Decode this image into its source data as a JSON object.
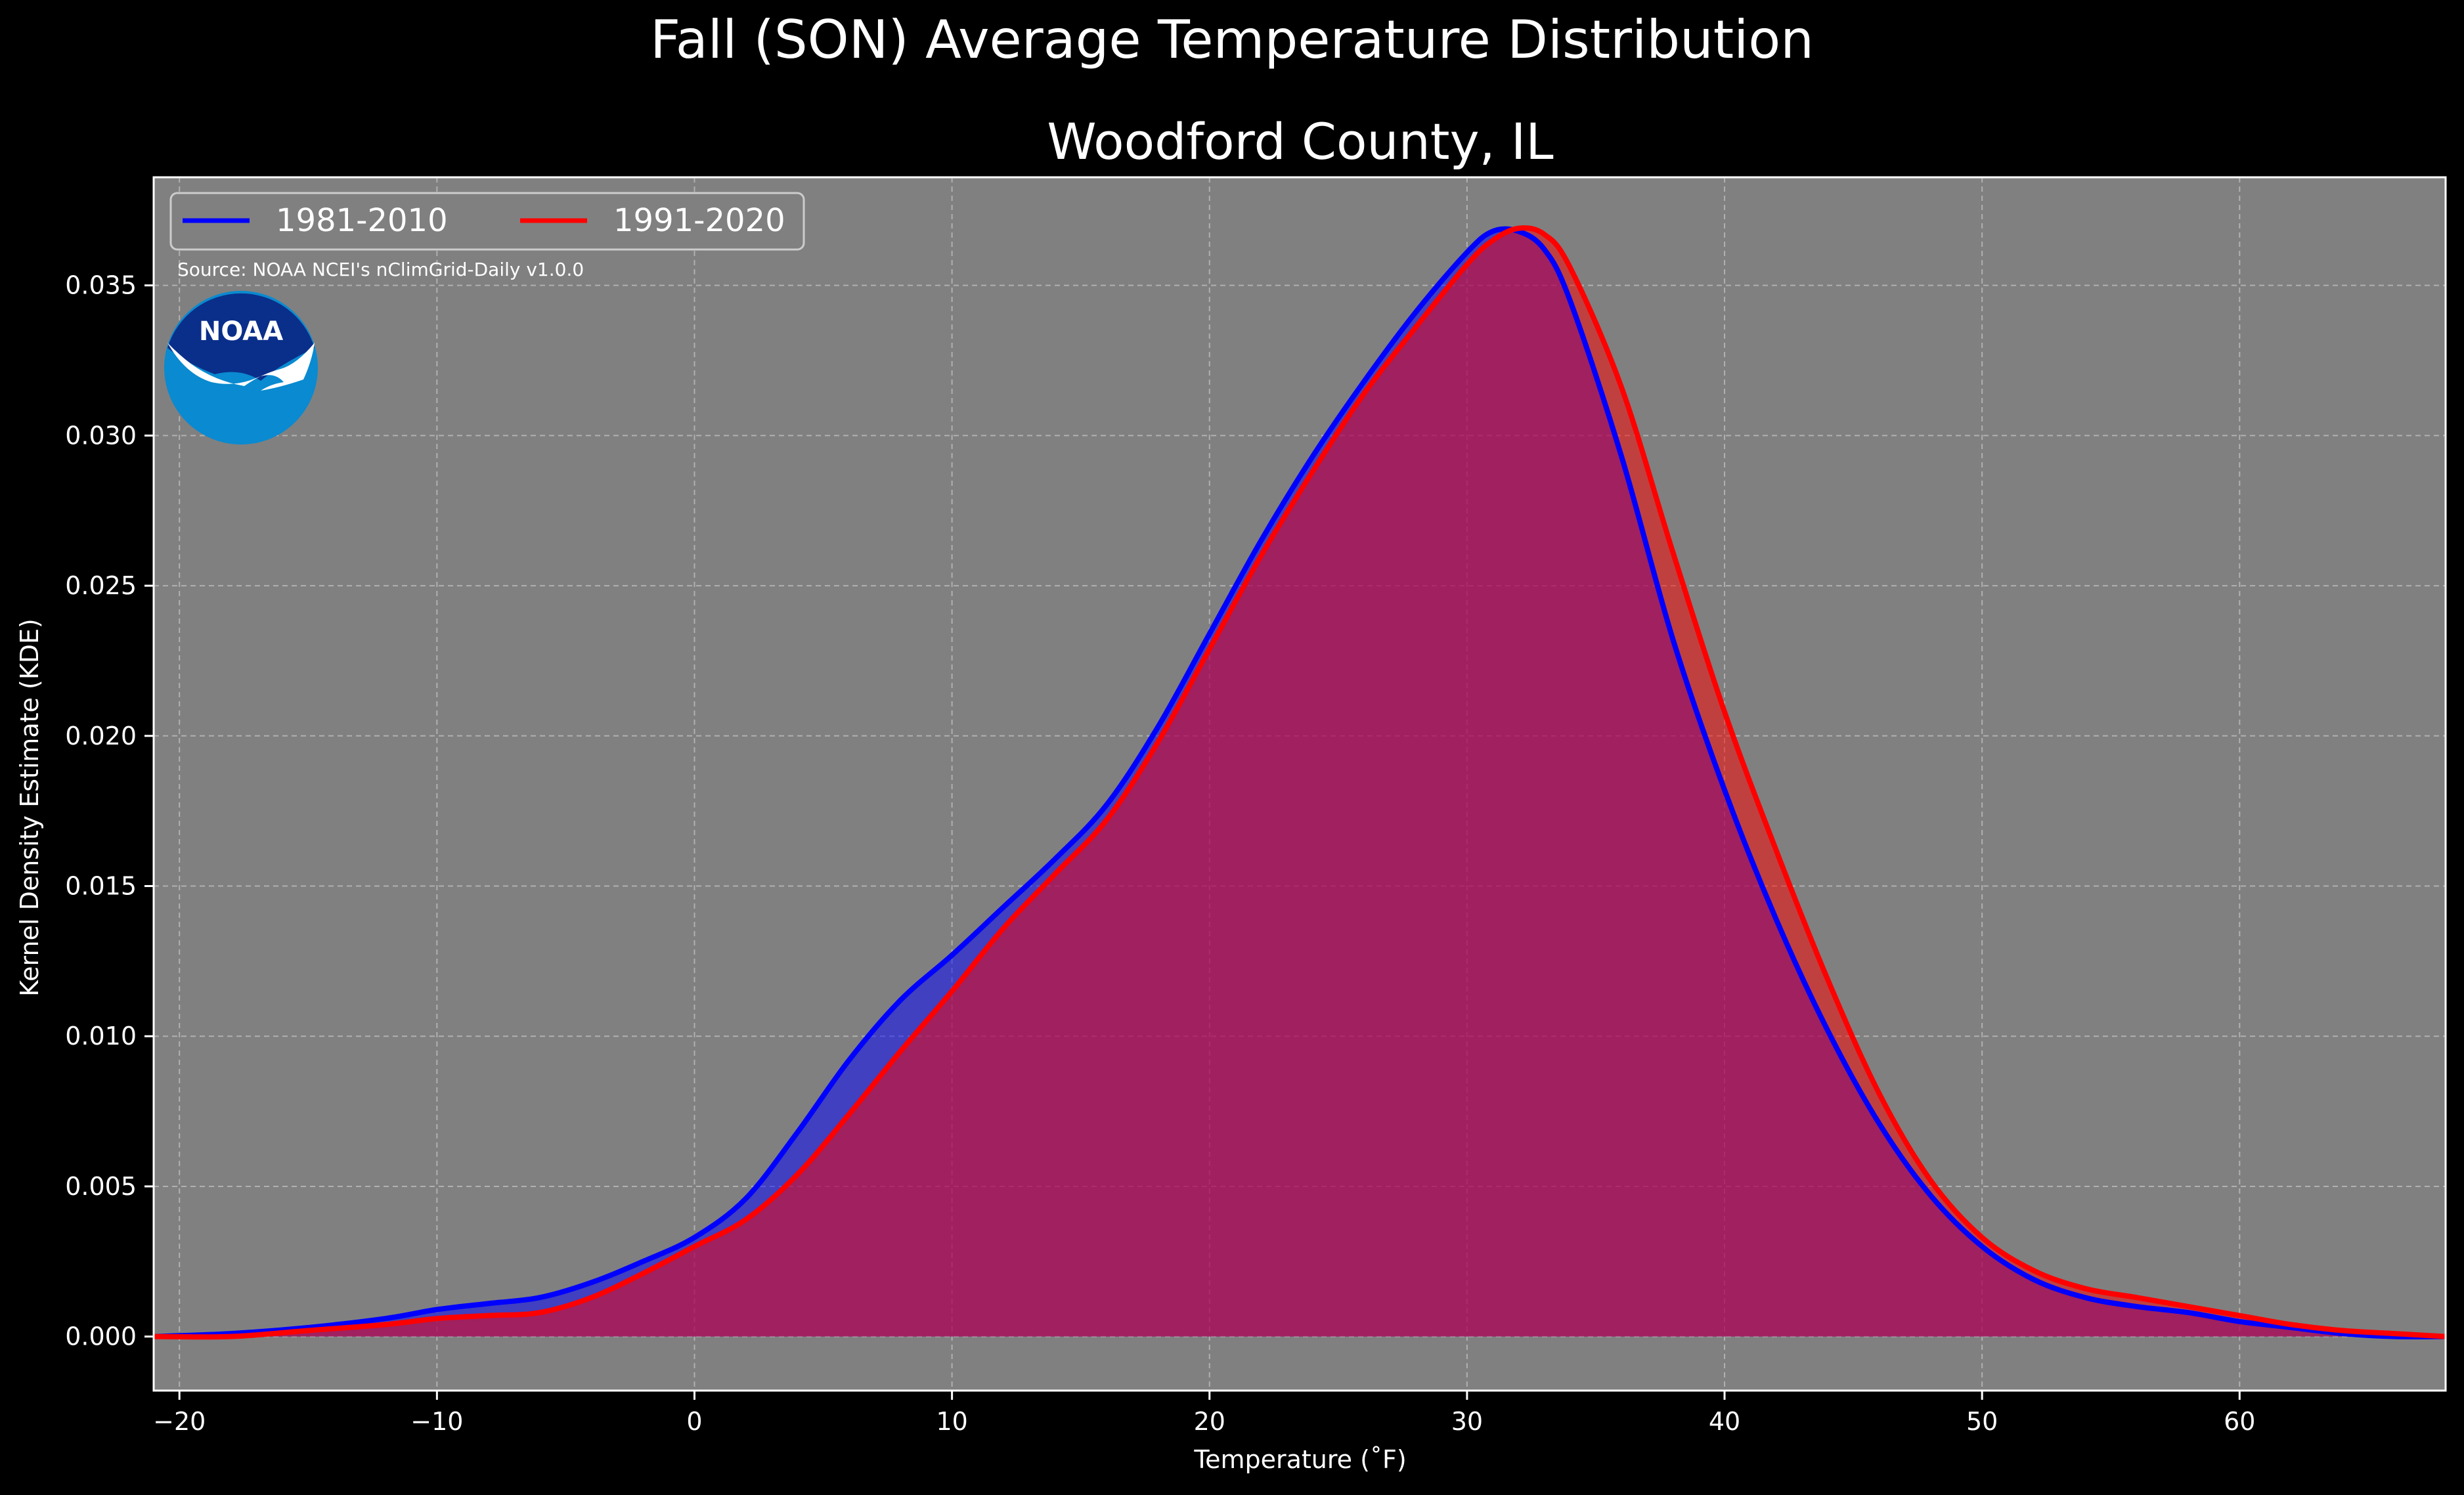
{
  "colors": {
    "background": "#000000",
    "plot_background": "#808080",
    "series_1981_2010": "#0000ff",
    "series_1991_2020": "#ff0000",
    "text": "#ffffff",
    "noaa_dark": "#0a2f8a",
    "noaa_light": "#0a8ad0"
  },
  "source_note": "Source: NOAA NCEI's nClimGrid-Daily v1.0.0",
  "logo": {
    "text": "NOAA",
    "icon": "noaa-logo-icon"
  },
  "chart_data": {
    "type": "area",
    "title": "Fall (SON) Average Temperature Distribution",
    "subtitle": "Woodford County, IL",
    "xlabel": "Temperature (˚F)",
    "ylabel": "Kernel Density Estimate (KDE)",
    "xlim": [
      -21,
      68
    ],
    "ylim": [
      -0.0018,
      0.0386
    ],
    "xticks": [
      -20,
      -10,
      0,
      10,
      20,
      30,
      40,
      50,
      60
    ],
    "xtick_labels": [
      "−20",
      "−10",
      "0",
      "10",
      "20",
      "30",
      "40",
      "50",
      "60"
    ],
    "yticks": [
      0.0,
      0.005,
      0.01,
      0.015,
      0.02,
      0.025,
      0.03,
      0.035
    ],
    "ytick_labels": [
      "0.000",
      "0.005",
      "0.010",
      "0.015",
      "0.020",
      "0.025",
      "0.030",
      "0.035"
    ],
    "grid": true,
    "legend_position": "top-left",
    "series": [
      {
        "name": "1981-2010",
        "color": "#0000ff",
        "x": [
          -21,
          -18,
          -15,
          -12,
          -10,
          -8,
          -6,
          -4,
          -2,
          0,
          2,
          4,
          6,
          8,
          10,
          12,
          14,
          16,
          18,
          20,
          22,
          24,
          26,
          28,
          30,
          31,
          32,
          33,
          34,
          36,
          38,
          40,
          42,
          44,
          46,
          48,
          50,
          52,
          54,
          56,
          58,
          60,
          62,
          64,
          66,
          68
        ],
        "y": [
          0.0,
          0.0001,
          0.0003,
          0.0006,
          0.0009,
          0.0011,
          0.0013,
          0.0018,
          0.0025,
          0.0033,
          0.0046,
          0.0068,
          0.0092,
          0.0112,
          0.0127,
          0.0143,
          0.0159,
          0.0177,
          0.0203,
          0.0234,
          0.0265,
          0.0293,
          0.0318,
          0.0341,
          0.0361,
          0.0368,
          0.0368,
          0.0362,
          0.0345,
          0.0293,
          0.0232,
          0.0182,
          0.0139,
          0.0102,
          0.0071,
          0.0047,
          0.003,
          0.0019,
          0.0013,
          0.001,
          0.0008,
          0.0005,
          0.0003,
          0.0001,
          0.0,
          0.0
        ]
      },
      {
        "name": "1991-2020",
        "color": "#ff0000",
        "x": [
          -21,
          -18,
          -15,
          -12,
          -10,
          -8,
          -6,
          -4,
          -2,
          0,
          2,
          4,
          6,
          8,
          10,
          12,
          14,
          16,
          18,
          20,
          22,
          24,
          26,
          28,
          30,
          31,
          32,
          33,
          34,
          36,
          38,
          40,
          42,
          44,
          46,
          48,
          50,
          52,
          54,
          56,
          58,
          60,
          62,
          64,
          66,
          68
        ],
        "y": [
          0.0,
          0.0,
          0.0002,
          0.0004,
          0.0006,
          0.0007,
          0.0008,
          0.0013,
          0.0021,
          0.003,
          0.0039,
          0.0054,
          0.0074,
          0.0095,
          0.0115,
          0.0136,
          0.0154,
          0.0172,
          0.0198,
          0.0229,
          0.026,
          0.0288,
          0.0314,
          0.0336,
          0.0357,
          0.0365,
          0.0369,
          0.0367,
          0.0356,
          0.0316,
          0.0261,
          0.0208,
          0.0162,
          0.0119,
          0.0081,
          0.0052,
          0.0033,
          0.0022,
          0.0016,
          0.0013,
          0.001,
          0.0007,
          0.0004,
          0.0002,
          0.0001,
          0.0
        ]
      }
    ]
  }
}
